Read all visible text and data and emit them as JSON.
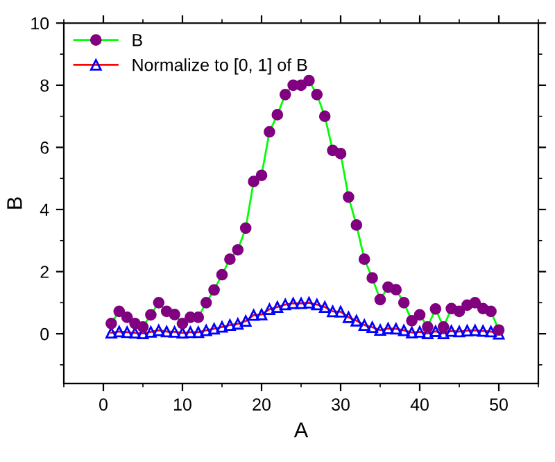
{
  "chart_data": {
    "type": "line",
    "xlabel": "A",
    "ylabel": "B",
    "x": [
      1,
      2,
      3,
      4,
      5,
      6,
      7,
      8,
      9,
      10,
      11,
      12,
      13,
      14,
      15,
      16,
      17,
      18,
      19,
      20,
      21,
      22,
      23,
      24,
      25,
      26,
      27,
      28,
      29,
      30,
      31,
      32,
      33,
      34,
      35,
      36,
      37,
      38,
      39,
      40,
      41,
      42,
      43,
      44,
      45,
      46,
      47,
      48,
      49,
      50
    ],
    "series": [
      {
        "name": "B",
        "color": "#800080",
        "marker": "circle",
        "values": [
          0.33,
          0.72,
          0.53,
          0.33,
          0.22,
          0.61,
          1.0,
          0.72,
          0.62,
          0.33,
          0.53,
          0.53,
          1.0,
          1.41,
          1.9,
          2.4,
          2.7,
          3.4,
          4.9,
          5.1,
          6.5,
          7.05,
          7.7,
          8.0,
          8.0,
          8.15,
          7.7,
          7.0,
          5.9,
          5.8,
          4.4,
          3.5,
          2.4,
          1.8,
          1.1,
          1.5,
          1.42,
          1.0,
          0.42,
          0.61,
          0.22,
          0.8,
          0.22,
          0.81,
          0.72,
          0.92,
          1.0,
          0.81,
          0.72,
          0.12
        ]
      },
      {
        "name": "Normalize to [0, 1] of B",
        "color": "#0000ff",
        "marker": "triangle",
        "values": [
          0.03,
          0.07,
          0.05,
          0.03,
          0.01,
          0.06,
          0.11,
          0.07,
          0.06,
          0.03,
          0.05,
          0.05,
          0.11,
          0.16,
          0.22,
          0.28,
          0.32,
          0.41,
          0.6,
          0.62,
          0.79,
          0.86,
          0.94,
          0.98,
          0.98,
          1.0,
          0.94,
          0.86,
          0.72,
          0.71,
          0.53,
          0.42,
          0.28,
          0.21,
          0.12,
          0.17,
          0.16,
          0.11,
          0.04,
          0.06,
          0.01,
          0.08,
          0.01,
          0.09,
          0.07,
          0.1,
          0.11,
          0.09,
          0.07,
          0.0
        ]
      }
    ],
    "xlim": [
      -5,
      55
    ],
    "xticks": [
      0,
      10,
      20,
      30,
      40,
      50
    ],
    "ylim": [
      -1.6,
      10
    ],
    "yticks": [
      0,
      2,
      4,
      6,
      8,
      10
    ],
    "grid": false,
    "legend": "top left",
    "line_style": "solid"
  }
}
